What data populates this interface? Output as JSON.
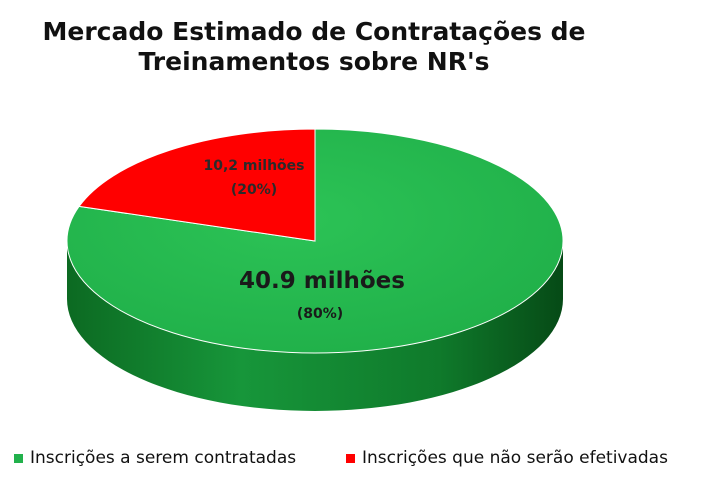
{
  "chart_data": {
    "type": "pie",
    "style": "3d",
    "title": [
      "Mercado Estimado de Contratações de",
      "Treinamentos sobre NR's"
    ],
    "slices": [
      {
        "name": "Inscrições a serem contratadas",
        "value": 80,
        "value_label": "40.9 milhões",
        "percent_label": "(80%)",
        "color": "#22b14c"
      },
      {
        "name": "Inscrições que não serão efetivadas",
        "value": 20,
        "value_label": "10,2 milhões",
        "percent_label": "(20%)",
        "color": "#ff0000"
      }
    ],
    "legend_position": "bottom"
  }
}
